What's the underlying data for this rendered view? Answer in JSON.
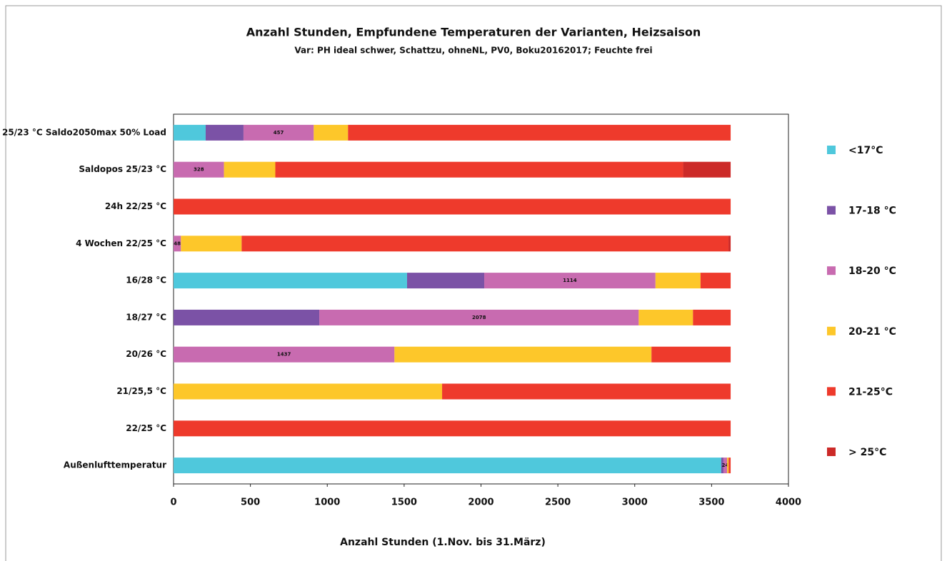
{
  "chart_data": {
    "type": "stacked-barh",
    "title": "Anzahl Stunden, Empfundene Temperaturen der Varianten, Heizsaison",
    "subtitle": "Var: PH ideal schwer, Schattzu, ohneNL, PV0, Boku20162017; Feuchte frei",
    "x_label": "Anzahl Stunden (1.Nov. bis 31.März)",
    "categories": [
      "25/23 °C Saldo2050max 50% Load",
      "Saldopos 25/23 °C",
      "24h 22/25 °C",
      "4 Wochen  22/25 °C",
      "16/28 °C",
      "18/27 °C",
      "20/26 °C",
      "21/25,5 °C",
      "22/25 °C",
      "Außenlufttemperatur"
    ],
    "series": [
      {
        "name": "<17°C",
        "color": "#4fc8dc",
        "values": [
          209,
          0,
          0,
          0,
          1519,
          0,
          0,
          0,
          0,
          3563
        ]
      },
      {
        "name": "17-18 °C",
        "color": "#7b52a6",
        "values": [
          246,
          0,
          0,
          0,
          502,
          948,
          0,
          0,
          0,
          14
        ]
      },
      {
        "name": "18-20 °C",
        "color": "#c86bb0",
        "values": [
          457,
          328,
          0,
          48,
          1114,
          2078,
          1437,
          0,
          0,
          24
        ],
        "data_labels": true
      },
      {
        "name": "20-21 °C",
        "color": "#fdc72a",
        "values": [
          223,
          334,
          0,
          395,
          293,
          353,
          1672,
          1747,
          0,
          10
        ]
      },
      {
        "name": "21-25°C",
        "color": "#ee3a2c",
        "values": [
          2489,
          2653,
          3624,
          3167,
          196,
          245,
          515,
          1877,
          3624,
          13
        ]
      },
      {
        "name": "> 25°C",
        "color": "#cc2a28",
        "values": [
          0,
          309,
          0,
          14,
          0,
          0,
          0,
          0,
          0,
          0
        ]
      }
    ],
    "xlim": [
      0,
      4000
    ],
    "xticks": [
      0,
      500,
      1000,
      1500,
      2000,
      2500,
      3000,
      3500,
      4000
    ],
    "legend": "right"
  }
}
